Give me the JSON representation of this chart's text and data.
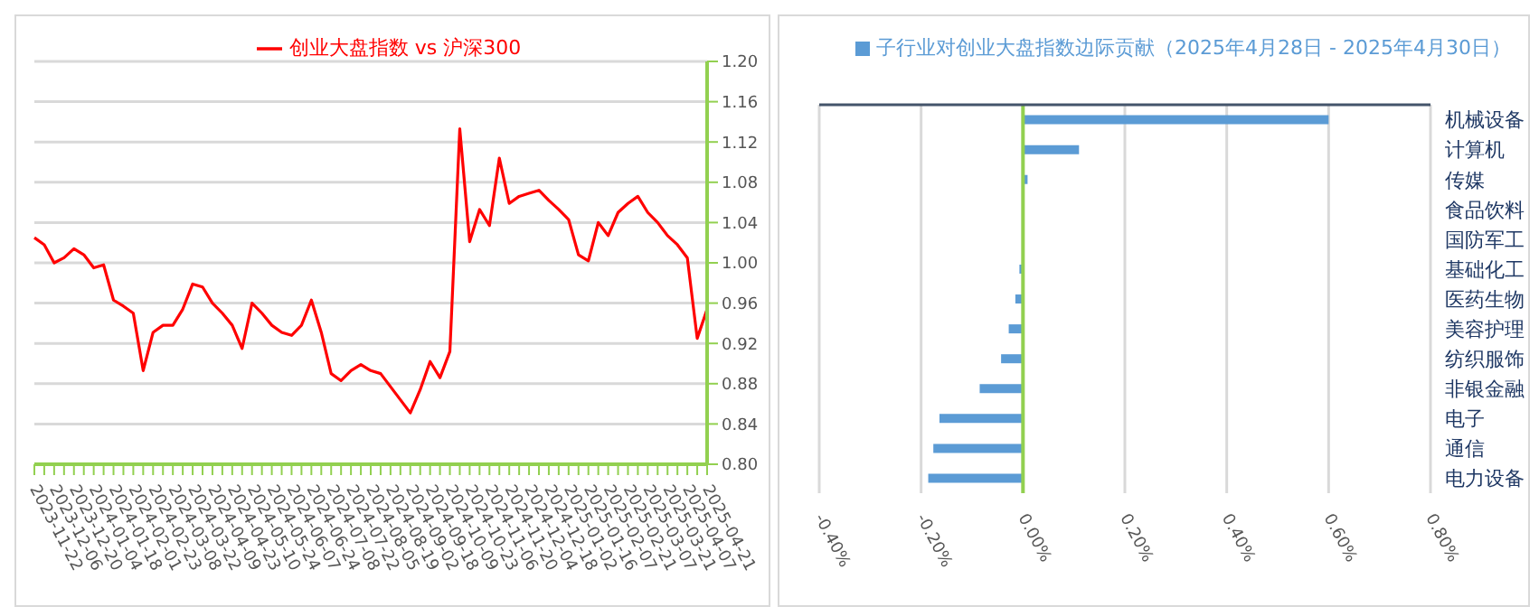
{
  "chart_data": [
    {
      "type": "line",
      "categories": [
        "2023-11-22",
        null,
        "2023-12-06",
        null,
        "2023-12-20",
        null,
        "2024-01-04",
        null,
        "2024-01-18",
        null,
        "2024-02-01",
        null,
        "2024-02-23",
        null,
        "2024-03-08",
        null,
        "2024-03-22",
        null,
        "2024-04-09",
        null,
        "2024-04-23",
        null,
        "2024-05-10",
        null,
        "2024-05-24",
        null,
        "2024-06-07",
        null,
        "2024-06-24",
        null,
        "2024-07-08",
        null,
        "2024-07-22",
        null,
        "2024-08-05",
        null,
        "2024-08-19",
        null,
        "2024-09-02",
        null,
        "2024-09-18",
        null,
        "2024-10-09",
        null,
        "2024-10-23",
        null,
        "2024-11-06",
        null,
        "2024-11-20",
        null,
        "2024-12-04",
        null,
        "2024-12-18",
        null,
        "2025-01-02",
        null,
        "2025-01-16",
        null,
        "2025-02-07",
        null,
        "2025-02-21",
        null,
        "2025-03-07",
        null,
        "2025-03-21",
        null,
        "2025-04-07",
        null,
        "2025-04-21"
      ],
      "series": [
        {
          "name": "创业大盘指数 vs 沪深300",
          "color": "#ff0000",
          "values": [
            1.025,
            1.018,
            1.0,
            1.005,
            1.014,
            1.008,
            0.995,
            0.998,
            0.963,
            0.957,
            0.95,
            0.893,
            0.931,
            0.938,
            0.938,
            0.954,
            0.979,
            0.976,
            0.96,
            0.95,
            0.938,
            0.915,
            0.96,
            0.95,
            0.938,
            0.931,
            0.928,
            0.938,
            0.963,
            0.931,
            0.89,
            0.883,
            0.893,
            0.899,
            0.893,
            0.89,
            0.877,
            0.864,
            0.851,
            0.874,
            0.902,
            0.886,
            0.912,
            1.133,
            1.021,
            1.053,
            1.037,
            1.104,
            1.059,
            1.066,
            1.069,
            1.072,
            1.062,
            1.053,
            1.043,
            1.008,
            1.002,
            1.04,
            1.027,
            1.05,
            1.059,
            1.066,
            1.05,
            1.04,
            1.027,
            1.018,
            1.005,
            0.925,
            0.954
          ]
        }
      ],
      "ylim": [
        0.8,
        1.2
      ],
      "yticks": [
        {
          "value": 0.8,
          "label": "0.80"
        },
        {
          "value": 0.84,
          "label": "0.84"
        },
        {
          "value": 0.88,
          "label": "0.88"
        },
        {
          "value": 0.92,
          "label": "0.92"
        },
        {
          "value": 0.96,
          "label": "0.96"
        },
        {
          "value": 1.0,
          "label": "1.00"
        },
        {
          "value": 1.04,
          "label": "1.04"
        },
        {
          "value": 1.08,
          "label": "1.08"
        },
        {
          "value": 1.12,
          "label": "1.12"
        },
        {
          "value": 1.16,
          "label": "1.16"
        },
        {
          "value": 1.2,
          "label": "1.20"
        }
      ],
      "grid": "y",
      "legend": "top",
      "marker": "none",
      "line_style": "solid"
    },
    {
      "type": "bar",
      "orientation": "horizontal",
      "categories": [
        "机械设备",
        "计算机",
        "传媒",
        "食品饮料",
        "国防军工",
        "基础化工",
        "医药生物",
        "美容护理",
        "纺织服饰",
        "非银金融",
        "电子",
        "通信",
        "电力设备"
      ],
      "series": [
        {
          "name": "子行业对创业大盘指数边际贡献（2025年4月28日 - 2025年4月30日）",
          "color": "#5b9bd5",
          "values": [
            0.6,
            0.11,
            0.009,
            null,
            null,
            -0.007,
            -0.015,
            -0.028,
            -0.043,
            -0.085,
            -0.164,
            -0.176,
            -0.186
          ]
        }
      ],
      "xlim": [
        -0.4,
        0.8
      ],
      "xticks": [
        {
          "value": -0.4,
          "label": "-0.40%"
        },
        {
          "value": -0.2,
          "label": "-0.20%"
        },
        {
          "value": 0,
          "label": "0.00%"
        },
        {
          "value": 0.2,
          "label": "0.20%"
        },
        {
          "value": 0.4,
          "label": "0.40%"
        },
        {
          "value": 0.6,
          "label": "0.60%"
        },
        {
          "value": 0.8,
          "label": "0.80%"
        }
      ],
      "ref_lines": [
        {
          "axis": "x",
          "value": 0,
          "color": "#92d050"
        }
      ],
      "grid": "x",
      "legend": "top"
    }
  ]
}
